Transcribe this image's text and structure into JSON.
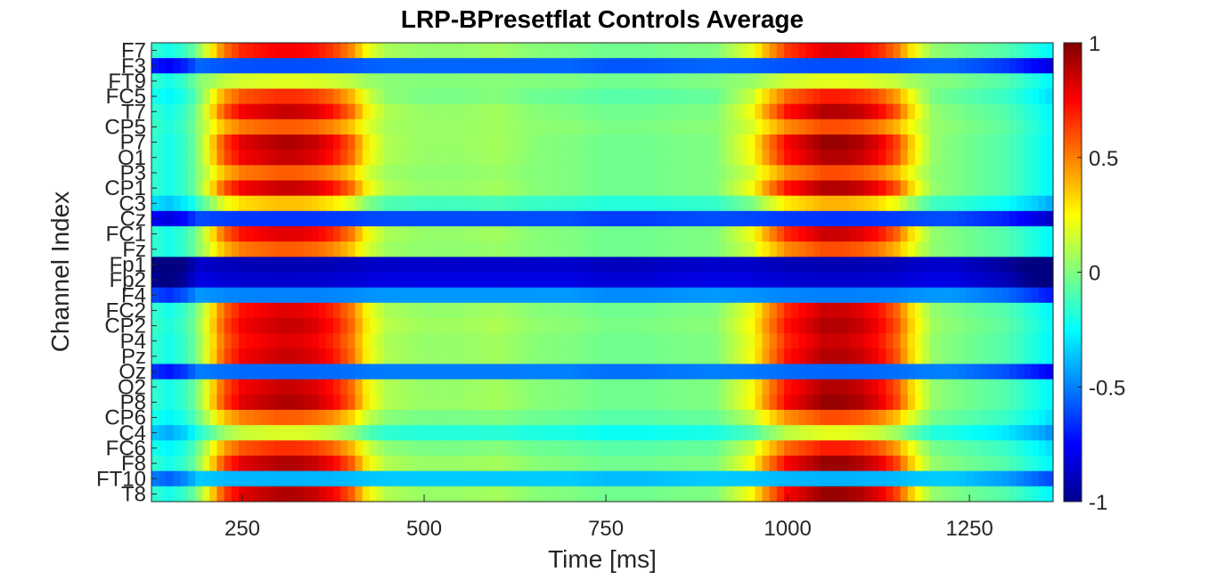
{
  "chart_data": {
    "type": "heatmap",
    "title": "LRP-BPresetflat Controls Average",
    "xlabel": "Time [ms]",
    "ylabel": "Channel Index",
    "xlim": [
      125,
      1365
    ],
    "x_ticks": [
      250,
      500,
      750,
      1000,
      1250
    ],
    "colormap": "jet",
    "clim": [
      -1,
      1
    ],
    "colorbar_ticks": [
      1,
      0.5,
      0,
      -0.5,
      -1
    ],
    "channels": [
      "F7",
      "F3",
      "FT9",
      "FC5",
      "T7",
      "CP5",
      "P7",
      "O1",
      "P3",
      "CP1",
      "C3",
      "Cz",
      "FC1",
      "Fz",
      "Fp1",
      "Fp2",
      "F4",
      "FC2",
      "CP2",
      "P4",
      "Pz",
      "Oz",
      "O2",
      "P8",
      "CP6",
      "C4",
      "FC6",
      "F8",
      "FT10",
      "T8"
    ],
    "channel_peak": [
      0.8,
      -0.6,
      0.2,
      0.7,
      0.9,
      0.6,
      0.95,
      0.9,
      0.6,
      0.9,
      0.4,
      -0.65,
      0.85,
      0.6,
      -0.9,
      -0.85,
      -0.5,
      0.85,
      0.9,
      0.85,
      0.9,
      -0.55,
      0.9,
      0.95,
      0.6,
      0.2,
      0.7,
      0.95,
      -0.4,
      0.95
    ],
    "channel_baseline": [
      0.0,
      -0.55,
      0.0,
      -0.05,
      0.0,
      0.02,
      0.0,
      0.0,
      0.0,
      0.0,
      -0.15,
      -0.6,
      0.0,
      0.0,
      -0.85,
      -0.8,
      -0.45,
      0.0,
      0.02,
      0.0,
      0.0,
      -0.5,
      0.0,
      0.0,
      -0.05,
      -0.2,
      -0.05,
      0.0,
      -0.35,
      0.0
    ],
    "time_profile": [
      [
        125,
        -0.25
      ],
      [
        150,
        -0.35
      ],
      [
        175,
        -0.2
      ],
      [
        200,
        0.2
      ],
      [
        225,
        0.65
      ],
      [
        250,
        0.85
      ],
      [
        275,
        0.9
      ],
      [
        300,
        0.95
      ],
      [
        325,
        0.95
      ],
      [
        350,
        0.9
      ],
      [
        375,
        0.8
      ],
      [
        400,
        0.6
      ],
      [
        425,
        0.25
      ],
      [
        450,
        0.1
      ],
      [
        500,
        0.05
      ],
      [
        550,
        0.05
      ],
      [
        600,
        0.08
      ],
      [
        650,
        0.02
      ],
      [
        700,
        0.0
      ],
      [
        750,
        -0.05
      ],
      [
        800,
        -0.05
      ],
      [
        850,
        -0.02
      ],
      [
        900,
        0.0
      ],
      [
        950,
        0.25
      ],
      [
        975,
        0.55
      ],
      [
        1000,
        0.8
      ],
      [
        1025,
        0.9
      ],
      [
        1050,
        1.0
      ],
      [
        1075,
        1.0
      ],
      [
        1100,
        0.95
      ],
      [
        1125,
        0.85
      ],
      [
        1150,
        0.65
      ],
      [
        1175,
        0.3
      ],
      [
        1200,
        0.05
      ],
      [
        1250,
        -0.05
      ],
      [
        1300,
        -0.15
      ],
      [
        1335,
        -0.3
      ],
      [
        1365,
        -0.45
      ]
    ]
  }
}
